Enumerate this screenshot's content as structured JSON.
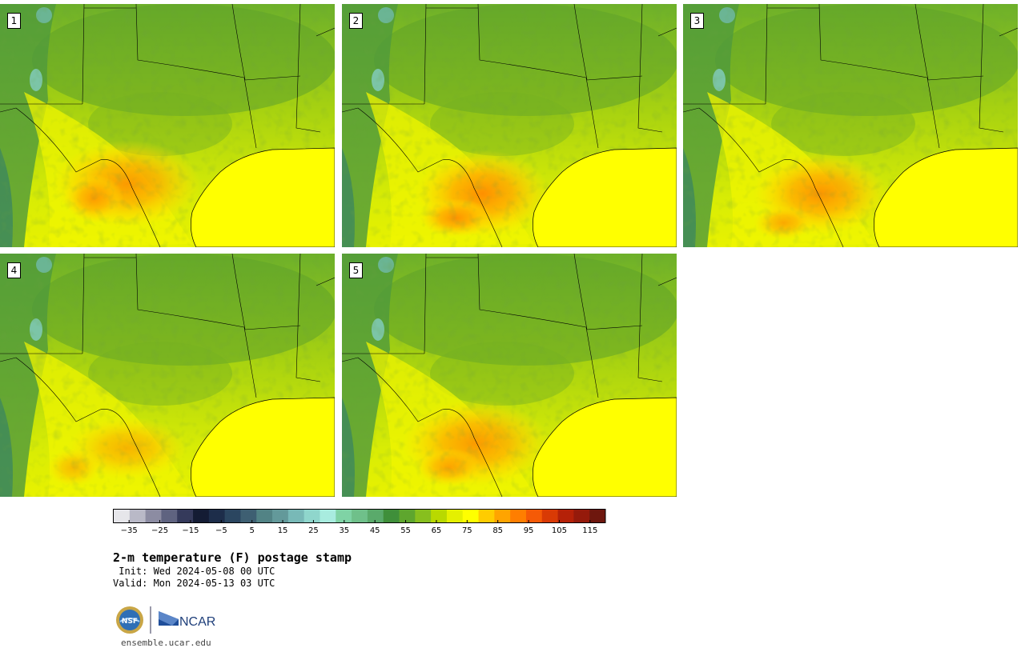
{
  "panels": [
    {
      "label": "1",
      "heat": [
        [
          0.38,
          0.74,
          0.22,
          0.18,
          0.85
        ],
        [
          0.28,
          0.8,
          0.09,
          0.1,
          0.75
        ]
      ]
    },
    {
      "label": "2",
      "heat": [
        [
          0.42,
          0.78,
          0.2,
          0.18,
          0.95
        ],
        [
          0.34,
          0.88,
          0.11,
          0.08,
          0.9
        ]
      ]
    },
    {
      "label": "3",
      "heat": [
        [
          0.41,
          0.78,
          0.2,
          0.17,
          0.9
        ],
        [
          0.3,
          0.9,
          0.09,
          0.07,
          0.7
        ]
      ]
    },
    {
      "label": "4",
      "heat": [
        [
          0.38,
          0.8,
          0.18,
          0.13,
          0.6
        ],
        [
          0.22,
          0.88,
          0.08,
          0.08,
          0.55
        ]
      ]
    },
    {
      "label": "5",
      "heat": [
        [
          0.4,
          0.78,
          0.22,
          0.18,
          0.85
        ],
        [
          0.32,
          0.88,
          0.1,
          0.08,
          0.7
        ]
      ]
    }
  ],
  "colorbar": {
    "colors": [
      "#e6e6ea",
      "#b9b9c7",
      "#8c8ca2",
      "#5f6380",
      "#353a5b",
      "#141c34",
      "#1d2d4a",
      "#2b4660",
      "#3e5f72",
      "#528385",
      "#63999a",
      "#78b9b7",
      "#8fd6cc",
      "#a8ecdf",
      "#7fd3a5",
      "#6fc08a",
      "#5aaa6b",
      "#3f8f3a",
      "#5ea62e",
      "#87bf1e",
      "#b9d900",
      "#e5f000",
      "#ffff00",
      "#ffcc00",
      "#ffa400",
      "#ff7e00",
      "#f55a06",
      "#d93a05",
      "#b52108",
      "#951a0b",
      "#6e170e"
    ],
    "ticks": [
      "−35",
      "−25",
      "−15",
      "−5",
      "5",
      "15",
      "25",
      "35",
      "45",
      "55",
      "65",
      "75",
      "85",
      "95",
      "105",
      "115"
    ],
    "min": -40,
    "max": 120
  },
  "title": "2-m temperature (F) postage stamp",
  "init": " Init: Wed 2024-05-08 00 UTC",
  "valid": "Valid: Mon 2024-05-13 03 UTC",
  "logo_ncar": "NCAR",
  "logo_nsf": "NSF",
  "url": "ensemble.ucar.edu"
}
